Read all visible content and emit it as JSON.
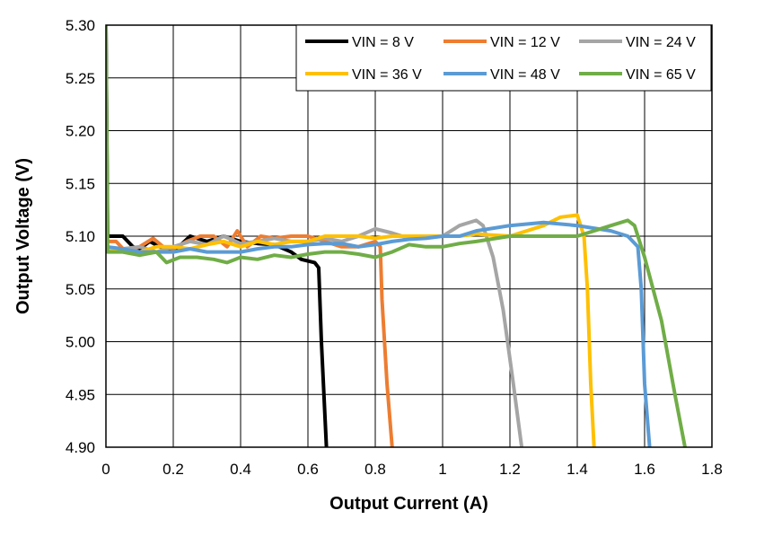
{
  "chart_data": {
    "type": "line",
    "xlabel": "Output Current (A)",
    "ylabel": "Output Voltage (V)",
    "xlim": [
      0,
      1.8
    ],
    "ylim": [
      4.9,
      5.3
    ],
    "x_ticks": [
      "0",
      "0.2",
      "0.4",
      "0.6",
      "0.8",
      "1",
      "1.2",
      "1.4",
      "1.6",
      "1.8"
    ],
    "y_ticks": [
      "4.90",
      "4.95",
      "5.00",
      "5.05",
      "5.10",
      "5.15",
      "5.20",
      "5.25",
      "5.30"
    ],
    "grid": true,
    "legend_position": "top-right",
    "series": [
      {
        "name": "VIN = 8 V",
        "color": "#000000",
        "points": [
          [
            0,
            5.3
          ],
          [
            0.005,
            5.1
          ],
          [
            0.05,
            5.1
          ],
          [
            0.08,
            5.09
          ],
          [
            0.1,
            5.088
          ],
          [
            0.13,
            5.095
          ],
          [
            0.16,
            5.09
          ],
          [
            0.2,
            5.085
          ],
          [
            0.25,
            5.1
          ],
          [
            0.3,
            5.095
          ],
          [
            0.35,
            5.1
          ],
          [
            0.4,
            5.095
          ],
          [
            0.45,
            5.093
          ],
          [
            0.5,
            5.092
          ],
          [
            0.55,
            5.085
          ],
          [
            0.58,
            5.078
          ],
          [
            0.62,
            5.075
          ],
          [
            0.632,
            5.07
          ],
          [
            0.64,
            5.0
          ],
          [
            0.655,
            4.9
          ]
        ]
      },
      {
        "name": "VIN = 12 V",
        "color": "#ED7D31",
        "points": [
          [
            0,
            5.095
          ],
          [
            0.03,
            5.095
          ],
          [
            0.06,
            5.085
          ],
          [
            0.1,
            5.09
          ],
          [
            0.14,
            5.098
          ],
          [
            0.17,
            5.09
          ],
          [
            0.2,
            5.088
          ],
          [
            0.24,
            5.095
          ],
          [
            0.28,
            5.1
          ],
          [
            0.32,
            5.1
          ],
          [
            0.36,
            5.09
          ],
          [
            0.39,
            5.105
          ],
          [
            0.42,
            5.09
          ],
          [
            0.46,
            5.1
          ],
          [
            0.5,
            5.098
          ],
          [
            0.55,
            5.1
          ],
          [
            0.6,
            5.1
          ],
          [
            0.65,
            5.095
          ],
          [
            0.7,
            5.09
          ],
          [
            0.75,
            5.09
          ],
          [
            0.8,
            5.095
          ],
          [
            0.815,
            5.09
          ],
          [
            0.82,
            5.04
          ],
          [
            0.835,
            4.96
          ],
          [
            0.85,
            4.9
          ]
        ]
      },
      {
        "name": "VIN = 24 V",
        "color": "#A5A5A5",
        "points": [
          [
            0,
            5.085
          ],
          [
            0.05,
            5.088
          ],
          [
            0.1,
            5.09
          ],
          [
            0.15,
            5.085
          ],
          [
            0.2,
            5.09
          ],
          [
            0.25,
            5.095
          ],
          [
            0.3,
            5.092
          ],
          [
            0.35,
            5.1
          ],
          [
            0.4,
            5.093
          ],
          [
            0.45,
            5.095
          ],
          [
            0.5,
            5.098
          ],
          [
            0.55,
            5.095
          ],
          [
            0.6,
            5.095
          ],
          [
            0.65,
            5.098
          ],
          [
            0.7,
            5.095
          ],
          [
            0.75,
            5.1
          ],
          [
            0.8,
            5.107
          ],
          [
            0.85,
            5.103
          ],
          [
            0.9,
            5.098
          ],
          [
            0.95,
            5.1
          ],
          [
            1.0,
            5.1
          ],
          [
            1.05,
            5.11
          ],
          [
            1.1,
            5.115
          ],
          [
            1.12,
            5.11
          ],
          [
            1.15,
            5.08
          ],
          [
            1.18,
            5.03
          ],
          [
            1.21,
            4.96
          ],
          [
            1.235,
            4.9
          ]
        ]
      },
      {
        "name": "VIN = 36 V",
        "color": "#FFC000",
        "points": [
          [
            0,
            5.085
          ],
          [
            0.05,
            5.088
          ],
          [
            0.1,
            5.085
          ],
          [
            0.15,
            5.09
          ],
          [
            0.2,
            5.09
          ],
          [
            0.25,
            5.088
          ],
          [
            0.3,
            5.092
          ],
          [
            0.35,
            5.095
          ],
          [
            0.4,
            5.09
          ],
          [
            0.45,
            5.095
          ],
          [
            0.5,
            5.092
          ],
          [
            0.55,
            5.095
          ],
          [
            0.6,
            5.095
          ],
          [
            0.65,
            5.1
          ],
          [
            0.7,
            5.1
          ],
          [
            0.75,
            5.1
          ],
          [
            0.8,
            5.098
          ],
          [
            0.85,
            5.1
          ],
          [
            0.9,
            5.1
          ],
          [
            0.95,
            5.1
          ],
          [
            1.0,
            5.1
          ],
          [
            1.05,
            5.1
          ],
          [
            1.1,
            5.102
          ],
          [
            1.2,
            5.1
          ],
          [
            1.3,
            5.11
          ],
          [
            1.35,
            5.118
          ],
          [
            1.4,
            5.12
          ],
          [
            1.42,
            5.1
          ],
          [
            1.43,
            5.05
          ],
          [
            1.44,
            4.96
          ],
          [
            1.45,
            4.9
          ]
        ]
      },
      {
        "name": "VIN = 48 V",
        "color": "#5B9BD5",
        "points": [
          [
            0,
            5.09
          ],
          [
            0.05,
            5.088
          ],
          [
            0.1,
            5.085
          ],
          [
            0.15,
            5.085
          ],
          [
            0.2,
            5.085
          ],
          [
            0.25,
            5.088
          ],
          [
            0.3,
            5.085
          ],
          [
            0.35,
            5.085
          ],
          [
            0.4,
            5.085
          ],
          [
            0.45,
            5.088
          ],
          [
            0.5,
            5.09
          ],
          [
            0.55,
            5.09
          ],
          [
            0.6,
            5.092
          ],
          [
            0.65,
            5.093
          ],
          [
            0.7,
            5.093
          ],
          [
            0.75,
            5.09
          ],
          [
            0.8,
            5.092
          ],
          [
            0.85,
            5.095
          ],
          [
            0.9,
            5.097
          ],
          [
            0.95,
            5.098
          ],
          [
            1.0,
            5.1
          ],
          [
            1.05,
            5.1
          ],
          [
            1.1,
            5.105
          ],
          [
            1.2,
            5.11
          ],
          [
            1.3,
            5.113
          ],
          [
            1.4,
            5.11
          ],
          [
            1.5,
            5.105
          ],
          [
            1.55,
            5.1
          ],
          [
            1.58,
            5.09
          ],
          [
            1.59,
            5.05
          ],
          [
            1.6,
            4.96
          ],
          [
            1.615,
            4.9
          ]
        ]
      },
      {
        "name": "VIN = 65 V",
        "color": "#70AD47",
        "points": [
          [
            0,
            5.3
          ],
          [
            0.005,
            5.085
          ],
          [
            0.05,
            5.085
          ],
          [
            0.1,
            5.082
          ],
          [
            0.15,
            5.085
          ],
          [
            0.18,
            5.075
          ],
          [
            0.22,
            5.08
          ],
          [
            0.27,
            5.08
          ],
          [
            0.32,
            5.078
          ],
          [
            0.36,
            5.075
          ],
          [
            0.4,
            5.08
          ],
          [
            0.45,
            5.078
          ],
          [
            0.5,
            5.082
          ],
          [
            0.55,
            5.08
          ],
          [
            0.6,
            5.083
          ],
          [
            0.65,
            5.085
          ],
          [
            0.7,
            5.085
          ],
          [
            0.75,
            5.083
          ],
          [
            0.8,
            5.08
          ],
          [
            0.85,
            5.085
          ],
          [
            0.9,
            5.092
          ],
          [
            0.95,
            5.09
          ],
          [
            1.0,
            5.09
          ],
          [
            1.05,
            5.093
          ],
          [
            1.1,
            5.095
          ],
          [
            1.2,
            5.1
          ],
          [
            1.3,
            5.1
          ],
          [
            1.4,
            5.1
          ],
          [
            1.5,
            5.11
          ],
          [
            1.55,
            5.115
          ],
          [
            1.57,
            5.11
          ],
          [
            1.6,
            5.08
          ],
          [
            1.65,
            5.02
          ],
          [
            1.69,
            4.95
          ],
          [
            1.72,
            4.9
          ]
        ]
      }
    ]
  }
}
